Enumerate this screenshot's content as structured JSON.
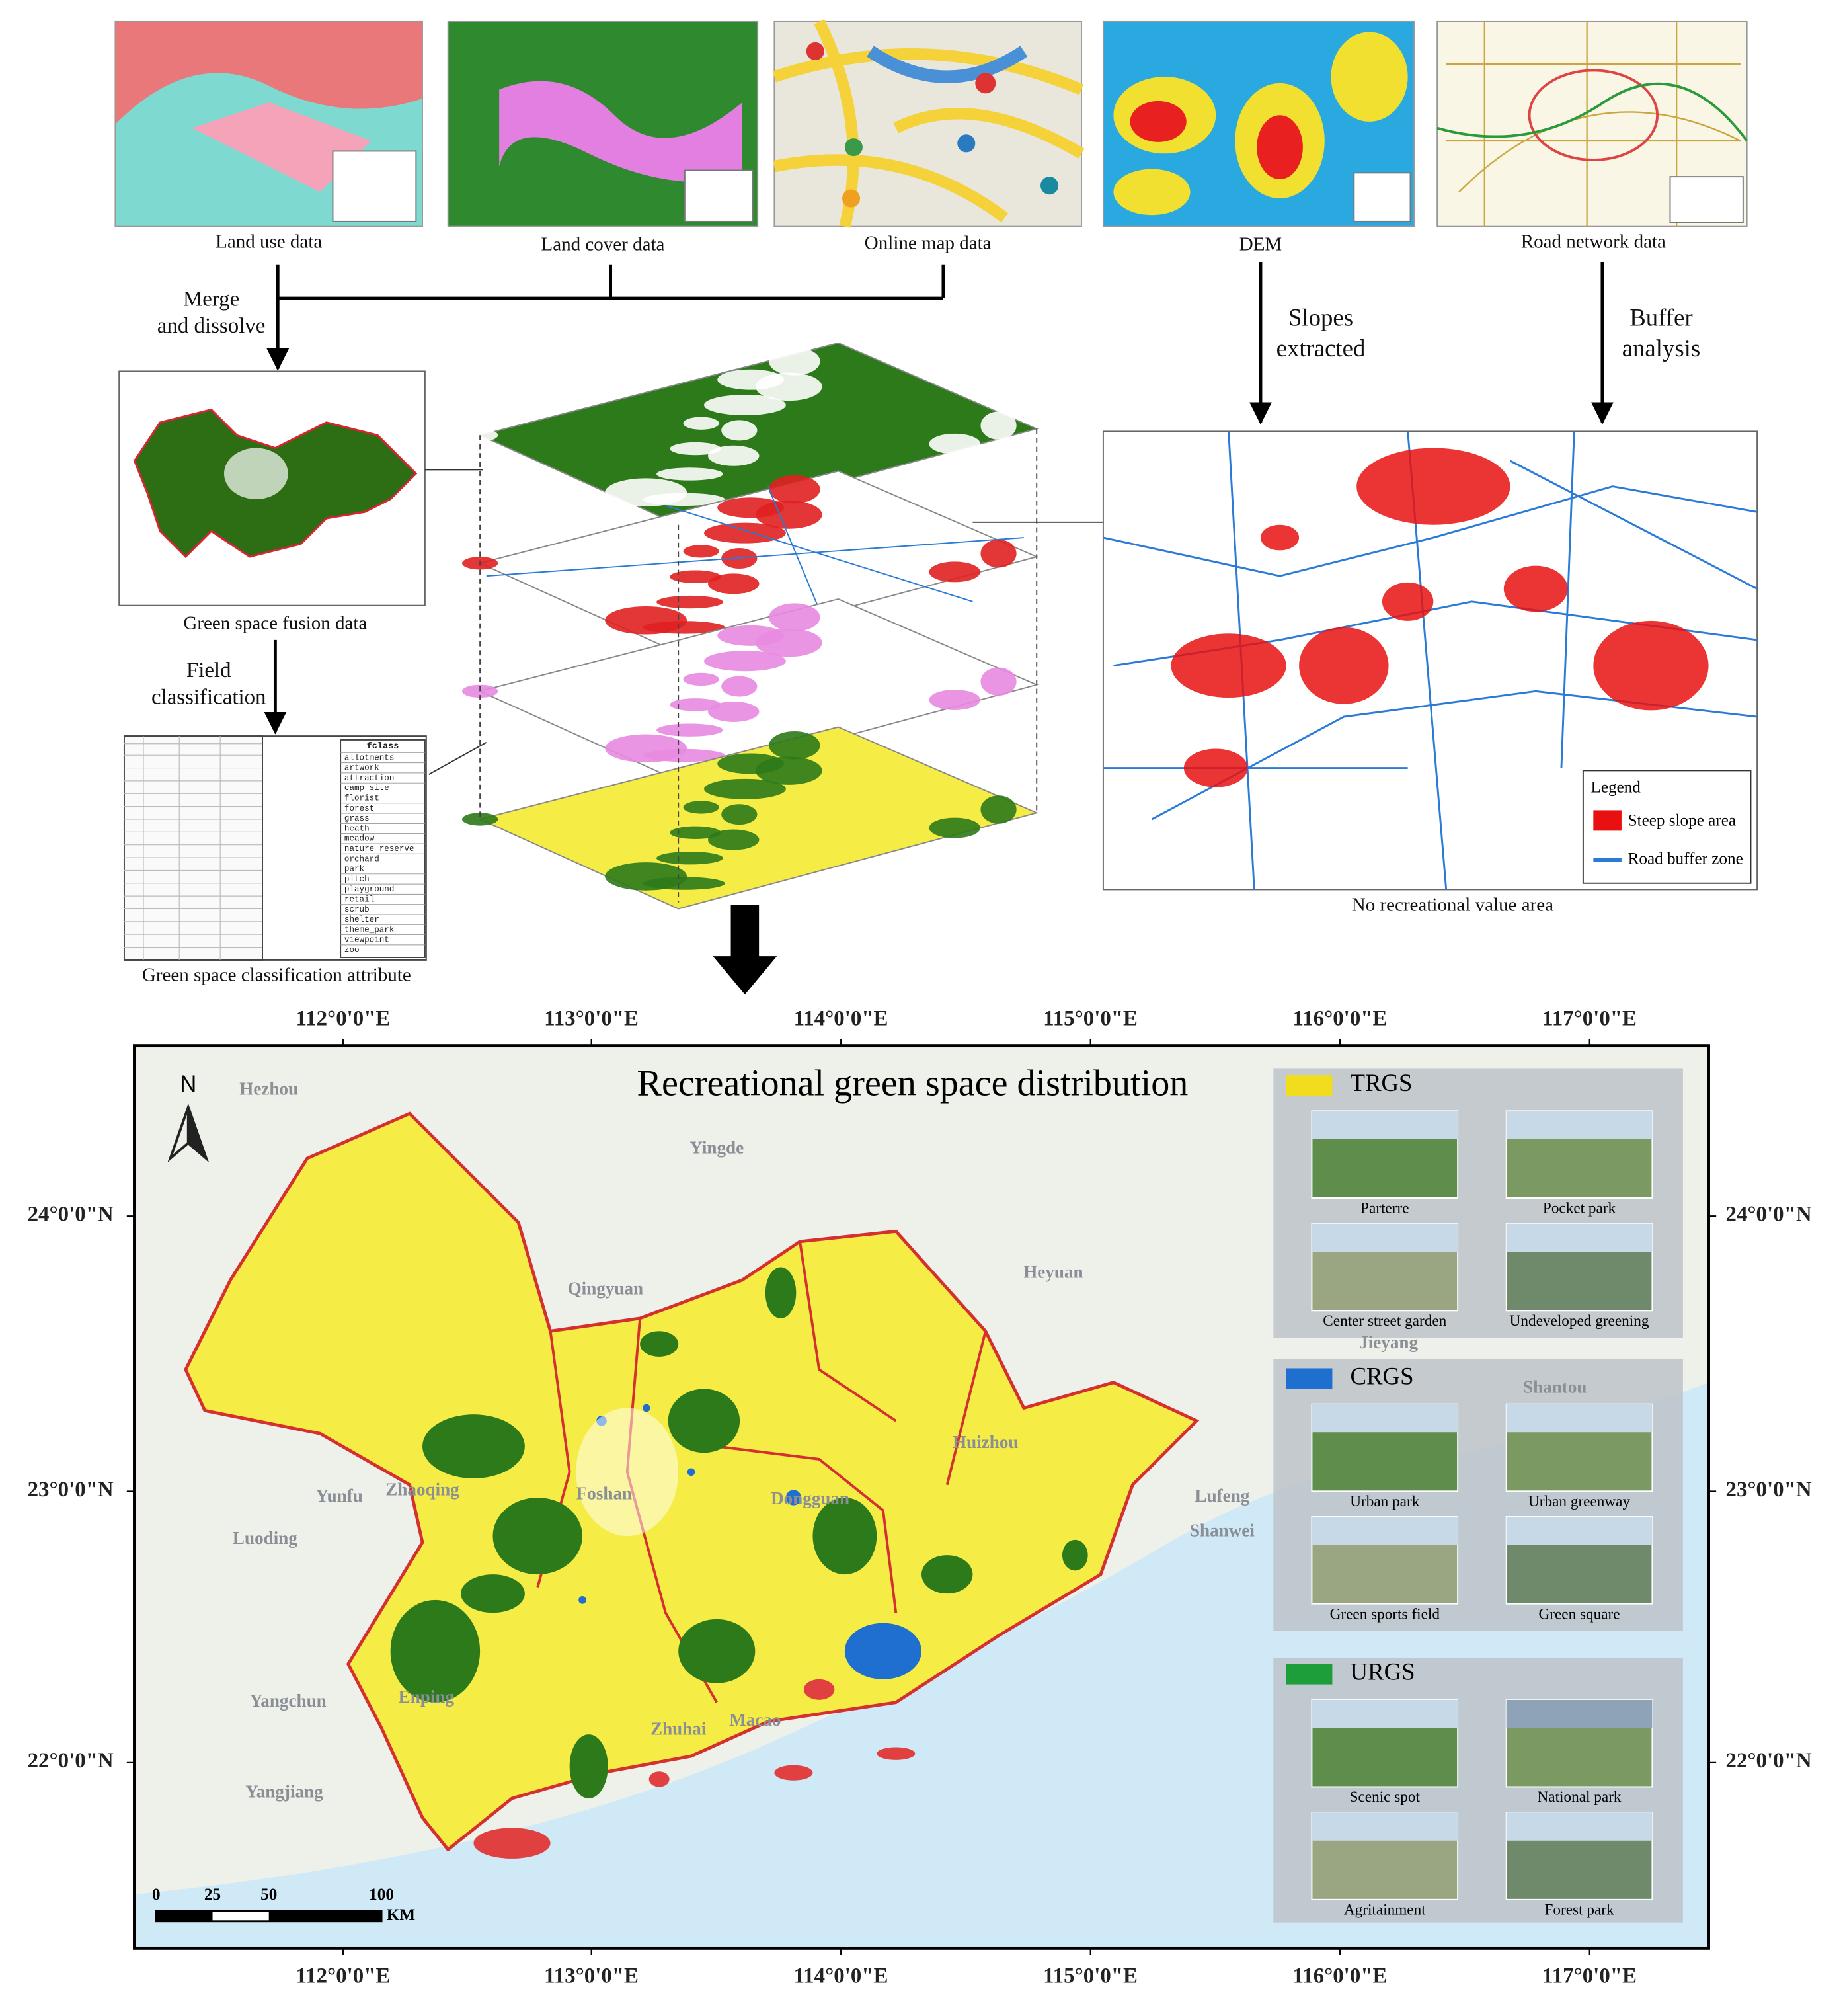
{
  "panels": [
    {
      "caption": "Land use data"
    },
    {
      "caption": "Land cover data"
    },
    {
      "caption": "Online map data"
    },
    {
      "caption": "DEM"
    },
    {
      "caption": "Road network data"
    }
  ],
  "steps": {
    "merge": [
      "Merge",
      "and dissolve"
    ],
    "field": [
      "Field",
      "classification"
    ],
    "slopes": [
      "Slopes",
      "extracted"
    ],
    "buffer": [
      "Buffer",
      "analysis"
    ]
  },
  "fusion": {
    "caption": "Green space fusion data"
  },
  "classification": {
    "caption": "Green space classification attribute",
    "header": "fclass",
    "classes": [
      "allotments",
      "artwork",
      "attraction",
      "camp_site",
      "florist",
      "forest",
      "grass",
      "heath",
      "meadow",
      "nature_reserve",
      "orchard",
      "park",
      "pitch",
      "playground",
      "retail",
      "scrub",
      "shelter",
      "theme_park",
      "viewpoint",
      "zoo"
    ]
  },
  "exclusion": {
    "caption": "No recreational value area",
    "legend_title": "Legend",
    "legend": [
      "Steep slope area",
      "Road buffer zone"
    ]
  },
  "map": {
    "title": "Recreational green space distribution",
    "north": "N",
    "lon_ticks": [
      "112°0'0\"E",
      "113°0'0\"E",
      "114°0'0\"E",
      "115°0'0\"E",
      "116°0'0\"E",
      "117°0'0\"E"
    ],
    "lat_ticks": [
      "24°0'0\"N",
      "23°0'0\"N",
      "22°0'0\"N"
    ],
    "scale": {
      "labels": [
        "0",
        "25",
        "50",
        "100"
      ],
      "unit": "KM"
    },
    "places": [
      "Hezhou",
      "Yingde",
      "Qingyuan",
      "Heyuan",
      "Jieyang",
      "Shantou",
      "Huizhou",
      "Yunfu",
      "Zhaoqing",
      "Foshan",
      "Dongguan",
      "Lufeng",
      "Shanwei",
      "Luoding",
      "Yangchun",
      "Enping",
      "Yangjiang",
      "Zhuhai",
      "Macao"
    ],
    "groups": [
      {
        "name": "TRGS",
        "color": "#f2dc1e",
        "items": [
          "Parterre",
          "Pocket park",
          "Center street garden",
          "Undeveloped greening"
        ]
      },
      {
        "name": "CRGS",
        "color": "#1f6fd0",
        "items": [
          "Urban park",
          "Urban greenway",
          "Green sports field",
          "Green square"
        ]
      },
      {
        "name": "URGS",
        "color": "#1e9e3a",
        "items": [
          "Scenic spot",
          "National park",
          "Agritainment",
          "Forest park"
        ]
      }
    ]
  }
}
